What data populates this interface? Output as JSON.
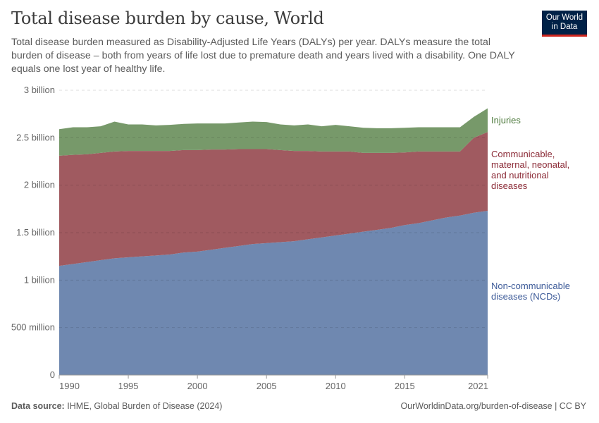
{
  "header": {
    "title": "Total disease burden by cause, World",
    "subtitle": "Total disease burden measured as Disability-Adjusted Life Years (DALYs) per year. DALYs measure the total burden of disease – both from years of life lost due to premature death and years lived with a disability. One DALY equals one lost year of healthy life.",
    "logo": [
      "Our World",
      "in Data"
    ]
  },
  "footer": {
    "source_label": "Data source:",
    "source": "IHME, Global Burden of Disease (2024)",
    "url": "OurWorldinData.org/burden-of-disease | CC BY"
  },
  "chart_data": {
    "type": "area",
    "stacked": true,
    "title": "Total disease burden by cause, World",
    "x": [
      1990,
      1991,
      1992,
      1993,
      1994,
      1995,
      1996,
      1997,
      1998,
      1999,
      2000,
      2001,
      2002,
      2003,
      2004,
      2005,
      2006,
      2007,
      2008,
      2009,
      2010,
      2011,
      2012,
      2013,
      2014,
      2015,
      2016,
      2017,
      2018,
      2019,
      2020,
      2021
    ],
    "xticks": [
      "1990",
      "1995",
      "2000",
      "2005",
      "2010",
      "2015",
      "2021"
    ],
    "xtick_values": [
      1990,
      1995,
      2000,
      2005,
      2010,
      2015,
      2021
    ],
    "yticks": [
      "0",
      "500 million",
      "1 billion",
      "1.5 billion",
      "2 billion",
      "2.5 billion",
      "3 billion"
    ],
    "ytick_values": [
      0,
      500000000.0,
      1000000000.0,
      1500000000.0,
      2000000000.0,
      2500000000.0,
      3000000000.0
    ],
    "ylim": [
      0,
      3000000000.0
    ],
    "grid": "horizontal dashed",
    "legend": "right-inline labels",
    "series": [
      {
        "name": "Non-communicable diseases (NCDs)",
        "label_lines": [
          "Non-communicable",
          "diseases (NCDs)"
        ],
        "color": "#6f88b0",
        "text_color": "#3c5a98",
        "values": [
          1150000000.0,
          1170000000.0,
          1190000000.0,
          1210000000.0,
          1230000000.0,
          1240000000.0,
          1250000000.0,
          1260000000.0,
          1270000000.0,
          1290000000.0,
          1300000000.0,
          1320000000.0,
          1340000000.0,
          1360000000.0,
          1380000000.0,
          1390000000.0,
          1400000000.0,
          1410000000.0,
          1430000000.0,
          1450000000.0,
          1470000000.0,
          1490000000.0,
          1510000000.0,
          1530000000.0,
          1550000000.0,
          1580000000.0,
          1600000000.0,
          1630000000.0,
          1660000000.0,
          1680000000.0,
          1710000000.0,
          1730000000.0
        ]
      },
      {
        "name": "Communicable, maternal, neonatal, and nutritional diseases",
        "label_lines": [
          "Communicable,",
          "maternal, neonatal,",
          "and nutritional",
          "diseases"
        ],
        "color": "#a05a60",
        "text_color": "#8b2a36",
        "values": [
          1160000000.0,
          1150000000.0,
          1135000000.0,
          1130000000.0,
          1125000000.0,
          1120000000.0,
          1110000000.0,
          1100000000.0,
          1090000000.0,
          1080000000.0,
          1070000000.0,
          1055000000.0,
          1035000000.0,
          1020000000.0,
          1000000000.0,
          990000000.0,
          970000000.0,
          950000000.0,
          930000000.0,
          905000000.0,
          885000000.0,
          865000000.0,
          830000000.0,
          810000000.0,
          790000000.0,
          765000000.0,
          755000000.0,
          725000000.0,
          695000000.0,
          675000000.0,
          790000000.0,
          830000000.0
        ]
      },
      {
        "name": "Injuries",
        "label_lines": [
          "Injuries"
        ],
        "color": "#77996a",
        "text_color": "#4d7a3c",
        "values": [
          280000000.0,
          290000000.0,
          285000000.0,
          280000000.0,
          315000000.0,
          280000000.0,
          280000000.0,
          270000000.0,
          275000000.0,
          275000000.0,
          280000000.0,
          275000000.0,
          275000000.0,
          280000000.0,
          290000000.0,
          285000000.0,
          270000000.0,
          270000000.0,
          280000000.0,
          265000000.0,
          280000000.0,
          265000000.0,
          265000000.0,
          260000000.0,
          260000000.0,
          260000000.0,
          255000000.0,
          255000000.0,
          255000000.0,
          255000000.0,
          220000000.0,
          250000000.0
        ]
      }
    ]
  }
}
